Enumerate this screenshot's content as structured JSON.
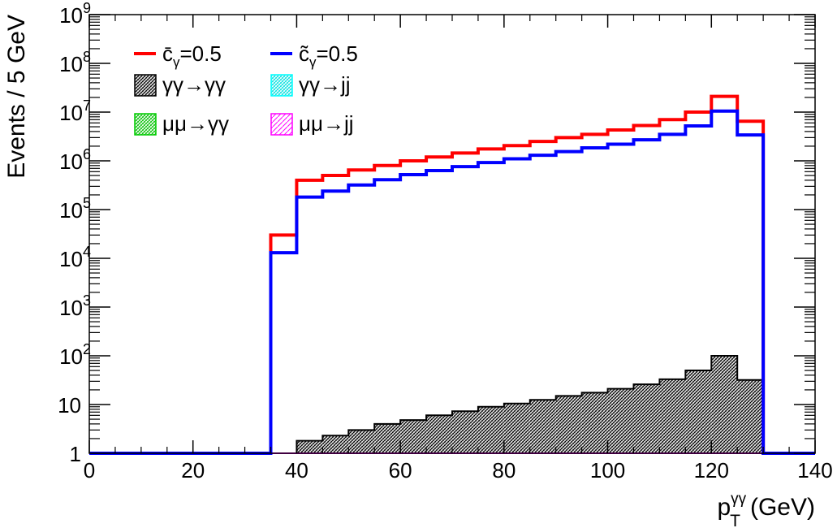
{
  "chart_data": {
    "type": "histogram",
    "title": "",
    "xlabel": {
      "main": "p",
      "sub": "T",
      "sup": "γγ",
      "unit": "(GeV)"
    },
    "ylabel": "Events / 5 GeV",
    "xlim": [
      0,
      140
    ],
    "ylim": [
      1,
      1000000000
    ],
    "yscale": "log",
    "grid": false,
    "legend_position": "top-left",
    "x_ticks": [
      0,
      20,
      40,
      60,
      80,
      100,
      120,
      140
    ],
    "y_ticks": [
      {
        "value": 1,
        "base": "1",
        "exp": ""
      },
      {
        "value": 10,
        "base": "10",
        "exp": ""
      },
      {
        "value": 100,
        "base": "10",
        "exp": "2"
      },
      {
        "value": 1000,
        "base": "10",
        "exp": "3"
      },
      {
        "value": 10000,
        "base": "10",
        "exp": "4"
      },
      {
        "value": 100000,
        "base": "10",
        "exp": "5"
      },
      {
        "value": 1000000,
        "base": "10",
        "exp": "6"
      },
      {
        "value": 10000000,
        "base": "10",
        "exp": "7"
      },
      {
        "value": 100000000,
        "base": "10",
        "exp": "8"
      },
      {
        "value": 1000000000,
        "base": "10",
        "exp": "9"
      }
    ],
    "bin_edges": [
      0,
      5,
      10,
      15,
      20,
      25,
      30,
      35,
      40,
      45,
      50,
      55,
      60,
      65,
      70,
      75,
      80,
      85,
      90,
      95,
      100,
      105,
      110,
      115,
      120,
      125,
      130,
      135,
      140
    ],
    "series": [
      {
        "name": "c̄γ=0.5",
        "label_main": "c̄",
        "label_sub": "γ",
        "label_rest": "=0.5",
        "kind": "line",
        "color": "#ff0000",
        "values": [
          1,
          1,
          1,
          1,
          1,
          1,
          1,
          30000,
          400000,
          500000,
          650000,
          800000,
          1000000,
          1200000,
          1450000,
          1750000,
          2050000,
          2500000,
          3000000,
          3500000,
          4300000,
          5300000,
          7000000,
          10000000,
          21000000,
          6500000,
          1,
          1
        ]
      },
      {
        "name": "c̃γ=0.5",
        "label_main": "c̃",
        "label_sub": "γ",
        "label_rest": "=0.5",
        "kind": "line",
        "color": "#0000ff",
        "values": [
          1,
          1,
          1,
          1,
          1,
          1,
          1,
          13000,
          180000,
          240000,
          320000,
          410000,
          520000,
          630000,
          760000,
          920000,
          1100000,
          1300000,
          1550000,
          1850000,
          2200000,
          2700000,
          3500000,
          5200000,
          10500000,
          3400000,
          1,
          1
        ]
      },
      {
        "name": "γγ→γγ",
        "label_main": "γγ→γγ",
        "label_sub": "",
        "label_rest": "",
        "kind": "fill",
        "color": "#000000",
        "fill": "#777777",
        "values": [
          1,
          1,
          1,
          1,
          1,
          1,
          1,
          1,
          1.8,
          2.3,
          3.0,
          4.0,
          4.8,
          6.0,
          7.3,
          9.0,
          10.5,
          12.5,
          15.0,
          17.5,
          21.0,
          26.0,
          33.0,
          50.0,
          100.0,
          32.0,
          1,
          1
        ]
      },
      {
        "name": "γγ→jj",
        "label_main": "γγ→jj",
        "label_sub": "",
        "label_rest": "",
        "kind": "fill",
        "color": "#00ffff",
        "fill": "#ccffff",
        "values": [
          1,
          1,
          1,
          1,
          1,
          1,
          1,
          1,
          1,
          1,
          1,
          1,
          1,
          1,
          1,
          1,
          1,
          1,
          1,
          1,
          1,
          1,
          1,
          1,
          1,
          1,
          1,
          1
        ]
      },
      {
        "name": "μμ→γγ",
        "label_main": "μμ→γγ",
        "label_sub": "",
        "label_rest": "",
        "kind": "fill",
        "color": "#00cc00",
        "fill": "#ccffcc",
        "values": [
          1,
          1,
          1,
          1,
          1,
          1,
          1,
          1,
          1,
          1,
          1,
          1,
          1,
          1,
          1,
          1,
          1,
          1,
          1,
          1,
          1,
          1,
          1,
          1,
          1,
          1,
          1,
          1
        ]
      },
      {
        "name": "μμ→jj",
        "label_main": "μμ→jj",
        "label_sub": "",
        "label_rest": "",
        "kind": "fill",
        "color": "#ff00ff",
        "fill": "#ffccff",
        "values": [
          1,
          1,
          1,
          1,
          1,
          1,
          1,
          1,
          1,
          1,
          1,
          1,
          1,
          1,
          1,
          1,
          1,
          1,
          1,
          1,
          1,
          1,
          1,
          1,
          1,
          1,
          1,
          1
        ]
      }
    ]
  }
}
